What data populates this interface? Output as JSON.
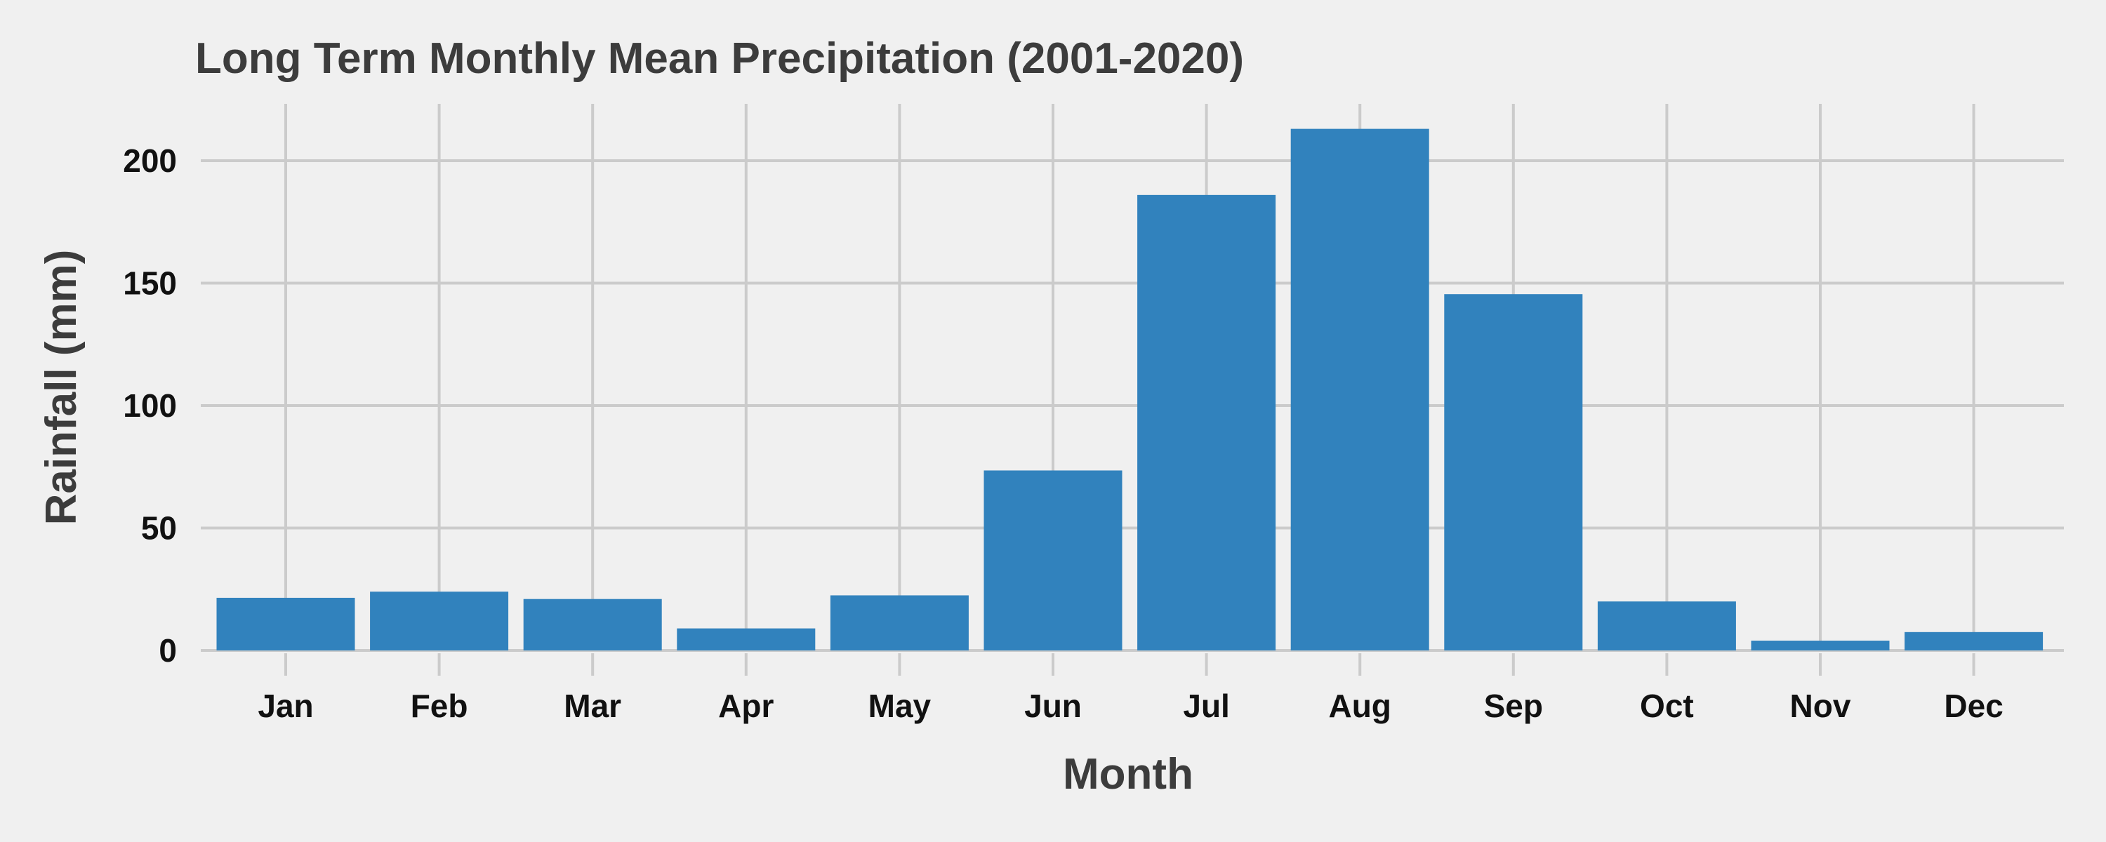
{
  "chart_data": {
    "type": "bar",
    "title": "Long Term Monthly Mean Precipitation (2001-2020)",
    "xlabel": "Month",
    "ylabel": "Rainfall (mm)",
    "categories": [
      "Jan",
      "Feb",
      "Mar",
      "Apr",
      "May",
      "Jun",
      "Jul",
      "Aug",
      "Sep",
      "Oct",
      "Nov",
      "Dec"
    ],
    "values": [
      21.5,
      24,
      21,
      9,
      22.5,
      73.5,
      186,
      213,
      145.5,
      20,
      4,
      7.5
    ],
    "ylim": [
      0,
      225
    ],
    "yticks": [
      0,
      50,
      100,
      150,
      200
    ],
    "grid": true,
    "legend": "none",
    "colors": {
      "bar": "#3182bd",
      "background": "#f0f0f0",
      "grid": "#cbcbcb"
    }
  }
}
